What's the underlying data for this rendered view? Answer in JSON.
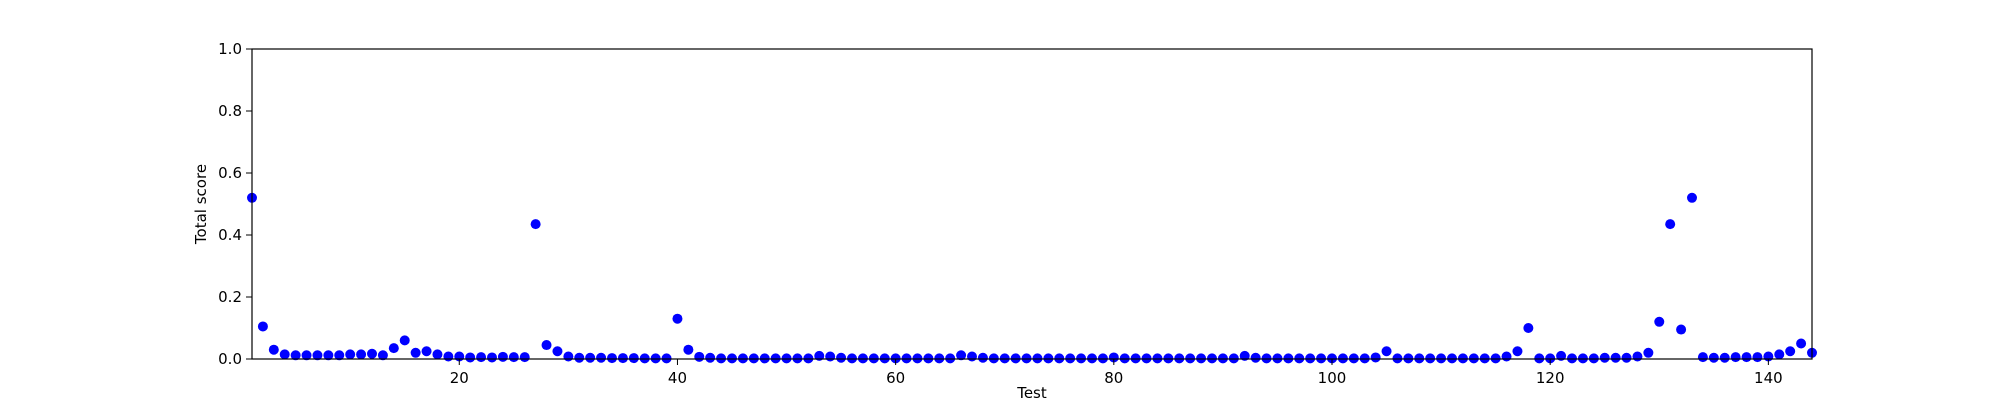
{
  "chart_data": {
    "type": "scatter",
    "title": "",
    "xlabel": "Test",
    "ylabel": "Total score",
    "xlim": [
      1,
      144
    ],
    "ylim": [
      0.0,
      1.0
    ],
    "x_ticks": [
      20,
      40,
      60,
      80,
      100,
      120,
      140
    ],
    "y_ticks": [
      0.0,
      0.2,
      0.4,
      0.6,
      0.8,
      1.0
    ],
    "x_tick_labels": [
      "20",
      "40",
      "60",
      "80",
      "100",
      "120",
      "140"
    ],
    "y_tick_labels": [
      "0.0",
      "0.2",
      "0.4",
      "0.6",
      "0.8",
      "1.0"
    ],
    "grid": false,
    "legend": "none",
    "colors": {
      "marker": "#0000ff",
      "axes": "#000000",
      "background": "#ffffff"
    },
    "series": [
      {
        "x": [
          1,
          2,
          3,
          4,
          5,
          6,
          7,
          8,
          9,
          10,
          11,
          12,
          13,
          14,
          15,
          16,
          17,
          18,
          19,
          20,
          21,
          22,
          23,
          24,
          25,
          26,
          27,
          28,
          29,
          30,
          31,
          32,
          33,
          34,
          35,
          36,
          37,
          38,
          39,
          40,
          41,
          42,
          43,
          44,
          45,
          46,
          47,
          48,
          49,
          50,
          51,
          52,
          53,
          54,
          55,
          56,
          57,
          58,
          59,
          60,
          61,
          62,
          63,
          64,
          65,
          66,
          67,
          68,
          69,
          70,
          71,
          72,
          73,
          74,
          75,
          76,
          77,
          78,
          79,
          80,
          81,
          82,
          83,
          84,
          85,
          86,
          87,
          88,
          89,
          90,
          91,
          92,
          93,
          94,
          95,
          96,
          97,
          98,
          99,
          100,
          101,
          102,
          103,
          104,
          105,
          106,
          107,
          108,
          109,
          110,
          111,
          112,
          113,
          114,
          115,
          116,
          117,
          118,
          119,
          120,
          121,
          122,
          123,
          124,
          125,
          126,
          127,
          128,
          129,
          130,
          131,
          132,
          133,
          134,
          135,
          136,
          137,
          138,
          139,
          140,
          141,
          142,
          143,
          144
        ],
        "y": [
          0.52,
          0.105,
          0.03,
          0.015,
          0.012,
          0.012,
          0.012,
          0.012,
          0.012,
          0.015,
          0.015,
          0.017,
          0.012,
          0.035,
          0.06,
          0.02,
          0.025,
          0.015,
          0.008,
          0.008,
          0.005,
          0.006,
          0.005,
          0.007,
          0.006,
          0.006,
          0.435,
          0.045,
          0.025,
          0.008,
          0.004,
          0.004,
          0.004,
          0.003,
          0.003,
          0.003,
          0.002,
          0.002,
          0.002,
          0.13,
          0.03,
          0.007,
          0.004,
          0.002,
          0.002,
          0.002,
          0.002,
          0.002,
          0.002,
          0.002,
          0.002,
          0.002,
          0.01,
          0.008,
          0.004,
          0.002,
          0.002,
          0.002,
          0.002,
          0.002,
          0.002,
          0.002,
          0.002,
          0.002,
          0.002,
          0.012,
          0.008,
          0.004,
          0.002,
          0.002,
          0.002,
          0.002,
          0.002,
          0.002,
          0.002,
          0.002,
          0.002,
          0.002,
          0.002,
          0.005,
          0.002,
          0.002,
          0.002,
          0.002,
          0.002,
          0.002,
          0.002,
          0.002,
          0.002,
          0.002,
          0.002,
          0.01,
          0.004,
          0.002,
          0.002,
          0.002,
          0.002,
          0.002,
          0.002,
          0.002,
          0.002,
          0.002,
          0.002,
          0.005,
          0.025,
          0.002,
          0.002,
          0.002,
          0.002,
          0.002,
          0.002,
          0.002,
          0.002,
          0.002,
          0.002,
          0.008,
          0.025,
          0.1,
          0.002,
          0.002,
          0.01,
          0.002,
          0.002,
          0.002,
          0.004,
          0.004,
          0.004,
          0.008,
          0.02,
          0.12,
          0.435,
          0.095,
          0.52,
          0.006,
          0.004,
          0.004,
          0.006,
          0.006,
          0.006,
          0.008,
          0.015,
          0.025,
          0.05,
          0.02
        ]
      }
    ]
  }
}
